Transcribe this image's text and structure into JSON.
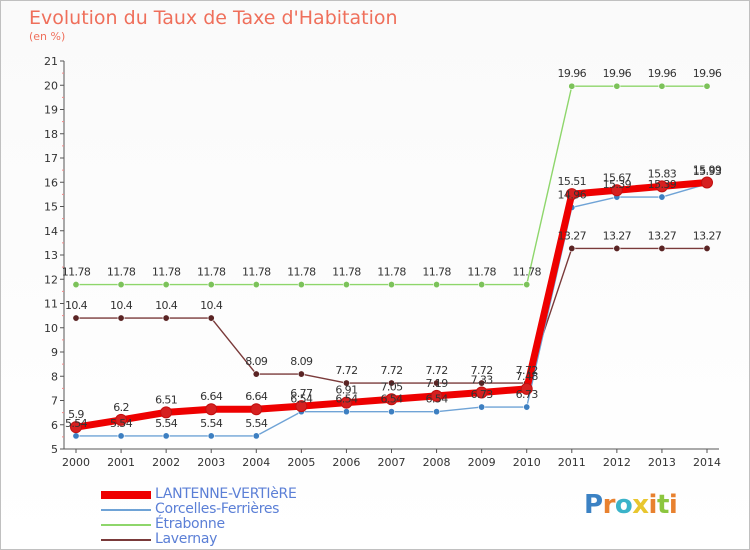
{
  "header": {
    "title": "Evolution du Taux de Taxe d'Habitation",
    "subtitle": "(en %)"
  },
  "logo": {
    "text": "Proxiti",
    "colors": [
      "#3b82c4",
      "#e8812f",
      "#3bb3c9",
      "#e8c62f",
      "#e8812f",
      "#8cc63f",
      "#e8812f"
    ]
  },
  "chart_data": {
    "type": "line",
    "x": [
      2000,
      2001,
      2002,
      2003,
      2004,
      2005,
      2006,
      2007,
      2008,
      2009,
      2010,
      2011,
      2012,
      2013,
      2014
    ],
    "xlabel": "",
    "ylabel": "",
    "ylim": [
      5,
      21
    ],
    "yticks": [
      5,
      6,
      7,
      8,
      9,
      10,
      11,
      12,
      13,
      14,
      15,
      16,
      17,
      18,
      19,
      20,
      21
    ],
    "grid": false,
    "legend_position": "bottom-left",
    "series": [
      {
        "name": "Étrabonne",
        "color": "#8ed66b",
        "marker": "#7cc25a",
        "values": [
          11.78,
          11.78,
          11.78,
          11.78,
          11.78,
          11.78,
          11.78,
          11.78,
          11.78,
          11.78,
          11.78,
          19.96,
          19.96,
          19.96,
          19.96
        ],
        "labels": [
          "11.78",
          "11.78",
          "11.78",
          "11.78",
          "11.78",
          "11.78",
          "11.78",
          "11.78",
          "11.78",
          "11.78",
          "11.78",
          "19.96",
          "19.96",
          "19.96",
          "19.96"
        ]
      },
      {
        "name": "Lavernay",
        "color": "#7a3a3a",
        "marker": "#5a2424",
        "values": [
          10.4,
          10.4,
          10.4,
          10.4,
          8.09,
          8.09,
          7.72,
          7.72,
          7.72,
          7.72,
          7.72,
          13.27,
          13.27,
          13.27,
          13.27
        ],
        "labels": [
          "10.4",
          "10.4",
          "10.4",
          "10.4",
          "8.09",
          "8.09",
          "7.72",
          "7.72",
          "7.72",
          "7.72",
          "7.72",
          "13.27",
          "13.27",
          "13.27",
          "13.27"
        ]
      },
      {
        "name": "Corcelles-Ferrières",
        "color": "#6fa3d6",
        "marker": "#3d7fc1",
        "values": [
          5.54,
          5.54,
          5.54,
          5.54,
          5.54,
          6.54,
          6.54,
          6.54,
          6.54,
          6.73,
          6.73,
          14.96,
          15.39,
          15.39,
          15.93
        ],
        "labels": [
          "5.54",
          "5.54",
          "5.54",
          "5.54",
          "5.54",
          "6.54",
          "6.54",
          "6.54",
          "6.54",
          "6.73",
          "6.73",
          "14.96",
          "15.39",
          "15.39",
          "15.93"
        ]
      },
      {
        "name": "LANTENNE-VERTIèRE",
        "color": "#ee0000",
        "marker": "#d62020",
        "values": [
          5.9,
          6.2,
          6.51,
          6.64,
          6.64,
          6.77,
          6.91,
          7.05,
          7.19,
          7.33,
          7.48,
          15.51,
          15.67,
          15.83,
          15.99
        ],
        "labels": [
          "5.9",
          "6.2",
          "6.51",
          "6.64",
          "6.64",
          "6.77",
          "6.91",
          "7.05",
          "7.19",
          "7.33",
          "7.48",
          "15.51",
          "15.67",
          "15.83",
          "15.99"
        ]
      }
    ],
    "legend_order": [
      "LANTENNE-VERTIèRE",
      "Corcelles-Ferrières",
      "Étrabonne",
      "Lavernay"
    ]
  }
}
